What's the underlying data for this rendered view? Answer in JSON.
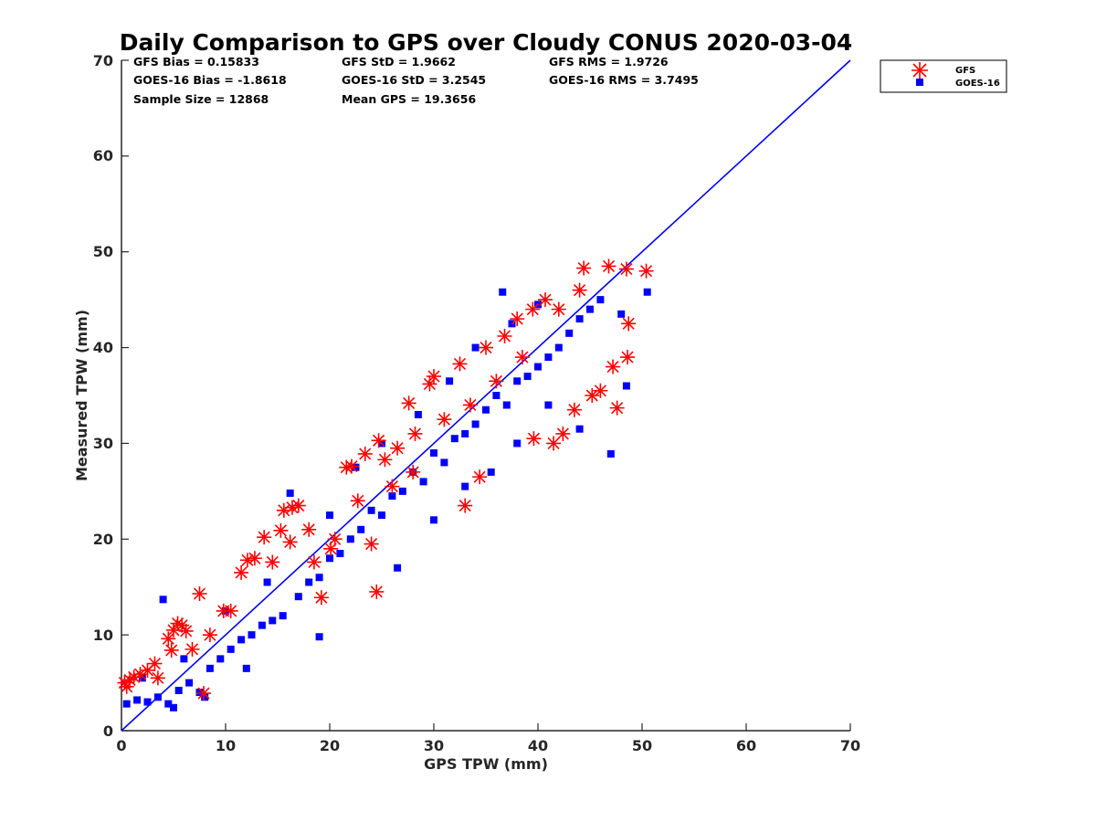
{
  "chart_data": {
    "type": "scatter",
    "title": "Daily Comparison to GPS over Cloudy CONUS 2020-03-04",
    "xlabel": "GPS TPW (mm)",
    "ylabel": "Measured TPW (mm)",
    "xlim": [
      0,
      70
    ],
    "ylim": [
      0,
      70
    ],
    "xticks": [
      "0",
      "10",
      "20",
      "30",
      "40",
      "50",
      "60",
      "70"
    ],
    "yticks": [
      "0",
      "10",
      "20",
      "30",
      "40",
      "50",
      "60",
      "70"
    ],
    "reference_line": {
      "x": [
        0,
        70
      ],
      "y": [
        0,
        70
      ],
      "color": "#0000ff"
    },
    "stats": [
      "GFS Bias = 0.15833",
      "GFS StD = 1.9662",
      "GFS RMS = 1.9726",
      "GOES-16 Bias = -1.8618",
      "GOES-16 StD = 3.2545",
      "GOES-16 RMS = 3.7495",
      "Sample Size = 12868",
      "Mean GPS = 19.3656"
    ],
    "legend": {
      "position": "outside-top-right",
      "entries": [
        "GFS",
        "GOES-16"
      ]
    },
    "series": [
      {
        "name": "GFS",
        "marker": "asterisk",
        "color": "#ff0000",
        "points": [
          [
            0.3,
            5.0
          ],
          [
            0.8,
            5.3
          ],
          [
            1.2,
            5.6
          ],
          [
            1.8,
            5.9
          ],
          [
            0.5,
            4.6
          ],
          [
            2.5,
            6.3
          ],
          [
            3.2,
            7.0
          ],
          [
            4.5,
            9.6
          ],
          [
            5.0,
            10.5
          ],
          [
            5.4,
            11.2
          ],
          [
            5.8,
            11.0
          ],
          [
            6.2,
            10.4
          ],
          [
            4.8,
            8.4
          ],
          [
            7.5,
            14.3
          ],
          [
            7.9,
            3.9
          ],
          [
            9.8,
            12.5
          ],
          [
            11.5,
            16.5
          ],
          [
            12.1,
            17.8
          ],
          [
            12.8,
            18.0
          ],
          [
            13.7,
            20.2
          ],
          [
            14.5,
            17.6
          ],
          [
            15.3,
            20.9
          ],
          [
            15.6,
            23.0
          ],
          [
            16.4,
            23.3
          ],
          [
            17.0,
            23.5
          ],
          [
            16.2,
            19.7
          ],
          [
            18.5,
            17.6
          ],
          [
            19.2,
            13.9
          ],
          [
            20.1,
            19.0
          ],
          [
            21.6,
            27.5
          ],
          [
            22.1,
            27.6
          ],
          [
            22.7,
            24.0
          ],
          [
            23.4,
            28.9
          ],
          [
            24.0,
            19.5
          ],
          [
            24.5,
            14.5
          ],
          [
            24.7,
            30.3
          ],
          [
            25.3,
            28.3
          ],
          [
            26.5,
            29.5
          ],
          [
            27.6,
            34.2
          ],
          [
            28.2,
            31.0
          ],
          [
            29.6,
            36.2
          ],
          [
            30.0,
            37.0
          ],
          [
            31.0,
            32.5
          ],
          [
            32.5,
            38.3
          ],
          [
            33.0,
            23.5
          ],
          [
            34.4,
            26.5
          ],
          [
            35.0,
            40.0
          ],
          [
            36.8,
            41.2
          ],
          [
            38.0,
            43.0
          ],
          [
            39.5,
            44.0
          ],
          [
            40.7,
            45.0
          ],
          [
            41.5,
            30.0
          ],
          [
            42.4,
            31.0
          ],
          [
            43.5,
            33.5
          ],
          [
            44.4,
            48.3
          ],
          [
            45.2,
            35.0
          ],
          [
            46.0,
            35.5
          ],
          [
            46.8,
            48.5
          ],
          [
            47.2,
            38.0
          ],
          [
            47.6,
            33.7
          ],
          [
            48.5,
            48.2
          ],
          [
            48.7,
            42.5
          ],
          [
            48.6,
            39.0
          ],
          [
            50.4,
            48.0
          ],
          [
            42.0,
            44.0
          ],
          [
            44.0,
            46.0
          ],
          [
            38.5,
            39.0
          ],
          [
            36.0,
            36.5
          ],
          [
            33.5,
            34.0
          ],
          [
            28.0,
            27.0
          ],
          [
            26.0,
            25.5
          ],
          [
            20.5,
            20.0
          ],
          [
            10.5,
            12.5
          ],
          [
            8.5,
            10.0
          ],
          [
            3.5,
            5.5
          ],
          [
            6.8,
            8.5
          ],
          [
            18.0,
            21.0
          ],
          [
            39.6,
            30.5
          ]
        ]
      },
      {
        "name": "GOES-16",
        "marker": "square",
        "color": "#0000ff",
        "points": [
          [
            0.5,
            2.8
          ],
          [
            1.5,
            3.2
          ],
          [
            2.5,
            3.0
          ],
          [
            3.5,
            3.5
          ],
          [
            4.5,
            2.8
          ],
          [
            5.5,
            4.2
          ],
          [
            6.5,
            5.0
          ],
          [
            7.5,
            4.0
          ],
          [
            8.5,
            6.5
          ],
          [
            9.5,
            7.5
          ],
          [
            10.5,
            8.5
          ],
          [
            11.5,
            9.5
          ],
          [
            12.5,
            10.0
          ],
          [
            13.5,
            11.0
          ],
          [
            14.5,
            11.5
          ],
          [
            15.5,
            12.0
          ],
          [
            16.2,
            24.8
          ],
          [
            17.0,
            14.0
          ],
          [
            18.0,
            15.5
          ],
          [
            19.0,
            16.0
          ],
          [
            20.0,
            18.0
          ],
          [
            21.0,
            18.5
          ],
          [
            22.0,
            20.0
          ],
          [
            23.0,
            21.0
          ],
          [
            24.0,
            23.0
          ],
          [
            25.0,
            22.5
          ],
          [
            26.0,
            24.5
          ],
          [
            27.0,
            25.0
          ],
          [
            28.0,
            27.0
          ],
          [
            29.0,
            26.0
          ],
          [
            30.0,
            29.0
          ],
          [
            31.0,
            28.0
          ],
          [
            32.0,
            30.5
          ],
          [
            33.0,
            31.0
          ],
          [
            34.0,
            32.0
          ],
          [
            35.0,
            33.5
          ],
          [
            36.0,
            35.0
          ],
          [
            37.0,
            34.0
          ],
          [
            38.0,
            36.5
          ],
          [
            39.0,
            37.0
          ],
          [
            40.0,
            38.0
          ],
          [
            41.0,
            39.0
          ],
          [
            42.0,
            40.0
          ],
          [
            43.0,
            41.5
          ],
          [
            44.0,
            43.0
          ],
          [
            45.0,
            44.0
          ],
          [
            46.0,
            45.0
          ],
          [
            47.0,
            28.9
          ],
          [
            48.0,
            43.5
          ],
          [
            48.5,
            36.0
          ],
          [
            50.5,
            45.8
          ],
          [
            36.6,
            45.8
          ],
          [
            44.0,
            31.5
          ],
          [
            30.0,
            22.0
          ],
          [
            26.5,
            17.0
          ],
          [
            19.0,
            9.8
          ],
          [
            12.0,
            6.5
          ],
          [
            8.0,
            3.5
          ],
          [
            5.0,
            2.4
          ],
          [
            10.0,
            12.5
          ],
          [
            14.0,
            15.5
          ],
          [
            4.0,
            13.7
          ],
          [
            2.0,
            5.5
          ],
          [
            6.0,
            7.5
          ],
          [
            20.0,
            22.5
          ],
          [
            22.5,
            27.5
          ],
          [
            25.0,
            30.0
          ],
          [
            28.5,
            33.0
          ],
          [
            31.5,
            36.5
          ],
          [
            34.0,
            40.0
          ],
          [
            37.5,
            42.5
          ],
          [
            40.0,
            44.5
          ],
          [
            41.0,
            34.0
          ],
          [
            38.0,
            30.0
          ],
          [
            35.5,
            27.0
          ],
          [
            33.0,
            25.5
          ]
        ]
      }
    ]
  }
}
